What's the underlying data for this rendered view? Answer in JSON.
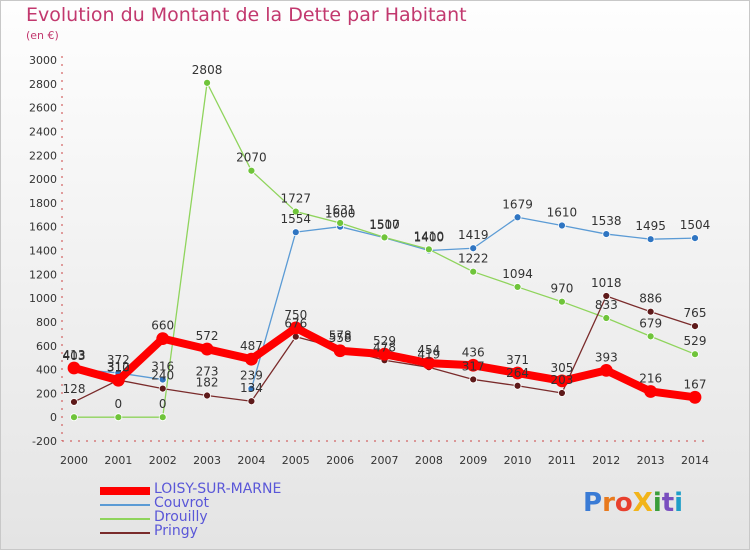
{
  "title": "Evolution du Montant de la Dette par Habitant",
  "subtitle": "(en €)",
  "logo": {
    "text": "ProXiti",
    "colors": [
      "#3a7bd5",
      "#e87a1e",
      "#e8402e",
      "#f2b41a",
      "#3a9e3a",
      "#7a4fbf",
      "#1e9ec8"
    ]
  },
  "chart_data": {
    "type": "line",
    "title": "Evolution du Montant de la Dette par Habitant",
    "ylabel": "(en €)",
    "xlabel": "",
    "ylim": [
      -200,
      3000
    ],
    "yticks": [
      -200,
      0,
      200,
      400,
      600,
      800,
      1000,
      1200,
      1400,
      1600,
      1800,
      2000,
      2200,
      2400,
      2600,
      2800,
      3000
    ],
    "x": [
      "2000",
      "2001",
      "2002",
      "2003",
      "2004",
      "2005",
      "2006",
      "2007",
      "2008",
      "2009",
      "2010",
      "2011",
      "2012",
      "2013",
      "2014"
    ],
    "grid": false,
    "legend_position": "bottom-left",
    "series": [
      {
        "name": "Couvrot",
        "color": "#5b9bd5",
        "marker": "#2f75c2",
        "values": [
          403,
          372,
          316,
          null,
          239,
          1554,
          1600,
          1507,
          1400,
          1419,
          1679,
          1610,
          1538,
          1495,
          1504
        ]
      },
      {
        "name": "Drouilly",
        "color": "#8fd45c",
        "marker": "#6fc43a",
        "values": [
          0,
          0,
          0,
          2808,
          2070,
          1727,
          1631,
          1510,
          1410,
          1222,
          1094,
          970,
          833,
          679,
          529
        ]
      },
      {
        "name": "Pringy",
        "color": "#7a2b2b",
        "marker": "#5e1a1a",
        "values": [
          128,
          312,
          240,
          182,
          134,
          676,
          578,
          478,
          419,
          317,
          264,
          203,
          1018,
          886,
          765
        ]
      },
      {
        "name": "LOISY-SUR-MARNE",
        "color": "#ff0000",
        "marker": "#ff0000",
        "bold": true,
        "values": [
          413,
          310,
          660,
          572,
          487,
          750,
          558,
          529,
          454,
          436,
          371,
          305,
          393,
          216,
          167
        ]
      }
    ],
    "point_labels": [
      {
        "x": "2000",
        "y": 413,
        "text": "413"
      },
      {
        "x": "2000",
        "y": 403,
        "text": "403"
      },
      {
        "x": "2000",
        "y": 128,
        "text": "128"
      },
      {
        "x": "2001",
        "y": 372,
        "text": "372"
      },
      {
        "x": "2001",
        "y": 312,
        "text": "312"
      },
      {
        "x": "2001",
        "y": 310,
        "text": "310"
      },
      {
        "x": "2001",
        "y": 0,
        "text": "0"
      },
      {
        "x": "2002",
        "y": 660,
        "text": "660"
      },
      {
        "x": "2002",
        "y": 316,
        "text": "316"
      },
      {
        "x": "2002",
        "y": 240,
        "text": "240"
      },
      {
        "x": "2002",
        "y": 0,
        "text": "0"
      },
      {
        "x": "2003",
        "y": 2808,
        "text": "2808"
      },
      {
        "x": "2003",
        "y": 572,
        "text": "572"
      },
      {
        "x": "2003",
        "y": 273,
        "text": "273"
      },
      {
        "x": "2003",
        "y": 182,
        "text": "182"
      },
      {
        "x": "2004",
        "y": 2070,
        "text": "2070"
      },
      {
        "x": "2004",
        "y": 487,
        "text": "487"
      },
      {
        "x": "2004",
        "y": 239,
        "text": "239"
      },
      {
        "x": "2004",
        "y": 134,
        "text": "134"
      },
      {
        "x": "2005",
        "y": 1727,
        "text": "1727"
      },
      {
        "x": "2005",
        "y": 1554,
        "text": "1554"
      },
      {
        "x": "2005",
        "y": 750,
        "text": "750"
      },
      {
        "x": "2005",
        "y": 676,
        "text": "676"
      },
      {
        "x": "2006",
        "y": 1631,
        "text": "1631"
      },
      {
        "x": "2006",
        "y": 1600,
        "text": "1600"
      },
      {
        "x": "2006",
        "y": 578,
        "text": "578"
      },
      {
        "x": "2006",
        "y": 558,
        "text": "558"
      },
      {
        "x": "2007",
        "y": 1510,
        "text": "1510"
      },
      {
        "x": "2007",
        "y": 1507,
        "text": "1507"
      },
      {
        "x": "2007",
        "y": 529,
        "text": "529"
      },
      {
        "x": "2007",
        "y": 478,
        "text": "478"
      },
      {
        "x": "2008",
        "y": 1410,
        "text": "1410"
      },
      {
        "x": "2008",
        "y": 1400,
        "text": "1400"
      },
      {
        "x": "2008",
        "y": 454,
        "text": "454"
      },
      {
        "x": "2008",
        "y": 419,
        "text": "419"
      },
      {
        "x": "2009",
        "y": 1419,
        "text": "1419"
      },
      {
        "x": "2009",
        "y": 1222,
        "text": "1222"
      },
      {
        "x": "2009",
        "y": 436,
        "text": "436"
      },
      {
        "x": "2009",
        "y": 317,
        "text": "317"
      },
      {
        "x": "2010",
        "y": 1679,
        "text": "1679"
      },
      {
        "x": "2010",
        "y": 1094,
        "text": "1094"
      },
      {
        "x": "2010",
        "y": 371,
        "text": "371"
      },
      {
        "x": "2010",
        "y": 264,
        "text": "264"
      },
      {
        "x": "2011",
        "y": 1610,
        "text": "1610"
      },
      {
        "x": "2011",
        "y": 970,
        "text": "970"
      },
      {
        "x": "2011",
        "y": 305,
        "text": "305"
      },
      {
        "x": "2011",
        "y": 203,
        "text": "203"
      },
      {
        "x": "2012",
        "y": 1538,
        "text": "1538"
      },
      {
        "x": "2012",
        "y": 1018,
        "text": "1018"
      },
      {
        "x": "2012",
        "y": 833,
        "text": "833"
      },
      {
        "x": "2012",
        "y": 393,
        "text": "393"
      },
      {
        "x": "2013",
        "y": 1495,
        "text": "1495"
      },
      {
        "x": "2013",
        "y": 886,
        "text": "886"
      },
      {
        "x": "2013",
        "y": 679,
        "text": "679"
      },
      {
        "x": "2013",
        "y": 216,
        "text": "216"
      },
      {
        "x": "2014",
        "y": 1504,
        "text": "1504"
      },
      {
        "x": "2014",
        "y": 765,
        "text": "765"
      },
      {
        "x": "2014",
        "y": 529,
        "text": "529"
      },
      {
        "x": "2014",
        "y": 167,
        "text": "167"
      }
    ]
  },
  "legend": [
    {
      "label": "LOISY-SUR-MARNE",
      "color": "#ff0000",
      "thick": true
    },
    {
      "label": "Couvrot",
      "color": "#5b9bd5",
      "thick": false
    },
    {
      "label": "Drouilly",
      "color": "#8fd45c",
      "thick": false
    },
    {
      "label": "Pringy",
      "color": "#7a2b2b",
      "thick": false
    }
  ]
}
